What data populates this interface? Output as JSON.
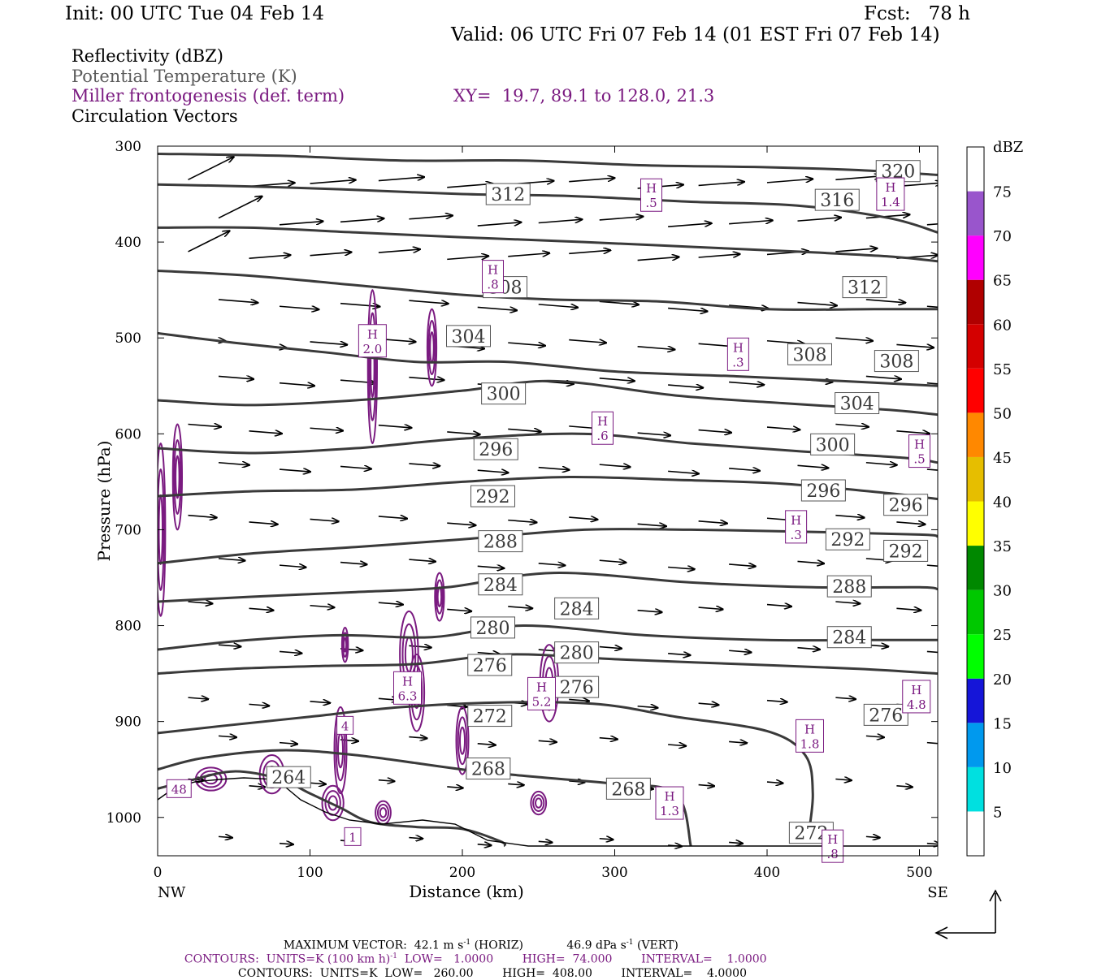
{
  "header": {
    "init": "Init: 00 UTC Tue 04 Feb 14",
    "fcst": "Fcst:   78 h",
    "valid": "Valid: 06 UTC Fri 07 Feb 14 (01 EST Fri 07 Feb 14)"
  },
  "legend": {
    "reflectivity": "Reflectivity (dBZ)",
    "theta": "Potential Temperature (K)",
    "frontogenesis": "Miller frontogenesis (def. term)",
    "xy": "XY=  19.7, 89.1 to 128.0, 21.3",
    "vectors": "Circulation Vectors"
  },
  "colors": {
    "theta": "#3a3a3a",
    "frontogenesis": "#7a1a80",
    "vector": "#000000"
  },
  "colorbar": {
    "unit": "dBZ",
    "levels": [
      "5",
      "10",
      "15",
      "20",
      "25",
      "30",
      "35",
      "40",
      "45",
      "50",
      "55",
      "60",
      "65",
      "70",
      "75"
    ],
    "colors": [
      "#ffffff",
      "#00e0e0",
      "#0099ee",
      "#1515d8",
      "#00ff00",
      "#00c800",
      "#008800",
      "#ffff00",
      "#e6be00",
      "#ff8800",
      "#ff0000",
      "#d40000",
      "#b00000",
      "#ff00ff",
      "#9955cc",
      "#ffffff"
    ]
  },
  "chart_data": {
    "type": "contour",
    "xlabel": "Distance (km)",
    "ylabel": "Pressure (hPa)",
    "x_ticks": [
      "0",
      "100",
      "200",
      "300",
      "400",
      "500"
    ],
    "y_ticks": [
      "300",
      "400",
      "500",
      "600",
      "700",
      "800",
      "900",
      "1000"
    ],
    "xlim": [
      0,
      512
    ],
    "ylim": [
      1040,
      300
    ],
    "left_end": "NW",
    "right_end": "SE",
    "theta_contours": [
      {
        "level": 264,
        "points": [
          [
            0,
            970
          ],
          [
            20,
            962
          ],
          [
            50,
            952
          ],
          [
            80,
            960
          ],
          [
            100,
            975
          ],
          [
            120,
            990
          ],
          [
            140,
            1005
          ],
          [
            170,
            1010
          ],
          [
            200,
            1012
          ],
          [
            225,
            1025
          ],
          [
            228,
            1030
          ]
        ]
      },
      {
        "level": 268,
        "points": [
          [
            0,
            950
          ],
          [
            30,
            938
          ],
          [
            80,
            930
          ],
          [
            130,
            935
          ],
          [
            200,
            950
          ],
          [
            250,
            958
          ],
          [
            300,
            965
          ],
          [
            340,
            975
          ],
          [
            350,
            1030
          ]
        ]
      },
      {
        "level": 272,
        "points": [
          [
            0,
            912
          ],
          [
            40,
            905
          ],
          [
            100,
            895
          ],
          [
            160,
            885
          ],
          [
            230,
            880
          ],
          [
            290,
            882
          ],
          [
            340,
            895
          ],
          [
            400,
            910
          ],
          [
            425,
            935
          ],
          [
            430,
            975
          ],
          [
            427,
            1020
          ]
        ]
      },
      {
        "level": 276,
        "points": [
          [
            0,
            850
          ],
          [
            50,
            845
          ],
          [
            110,
            842
          ],
          [
            170,
            840
          ],
          [
            230,
            830
          ],
          [
            300,
            835
          ],
          [
            380,
            840
          ],
          [
            460,
            845
          ],
          [
            512,
            850
          ]
        ]
      },
      {
        "level": 280,
        "points": [
          [
            0,
            825
          ],
          [
            60,
            815
          ],
          [
            120,
            810
          ],
          [
            180,
            812
          ],
          [
            240,
            800
          ],
          [
            320,
            810
          ],
          [
            400,
            815
          ],
          [
            470,
            815
          ],
          [
            512,
            815
          ]
        ]
      },
      {
        "level": 284,
        "points": [
          [
            0,
            775
          ],
          [
            60,
            770
          ],
          [
            130,
            765
          ],
          [
            190,
            760
          ],
          [
            260,
            745
          ],
          [
            350,
            755
          ],
          [
            430,
            760
          ],
          [
            500,
            760
          ],
          [
            512,
            762
          ]
        ]
      },
      {
        "level": 288,
        "points": [
          [
            0,
            735
          ],
          [
            60,
            725
          ],
          [
            130,
            718
          ],
          [
            200,
            710
          ],
          [
            280,
            700
          ],
          [
            350,
            700
          ],
          [
            420,
            702
          ],
          [
            500,
            705
          ],
          [
            512,
            707
          ]
        ]
      },
      {
        "level": 292,
        "points": [
          [
            0,
            665
          ],
          [
            60,
            660
          ],
          [
            130,
            658
          ],
          [
            200,
            650
          ],
          [
            270,
            645
          ],
          [
            340,
            648
          ],
          [
            410,
            652
          ],
          [
            480,
            662
          ],
          [
            512,
            668
          ]
        ]
      },
      {
        "level": 296,
        "points": [
          [
            0,
            615
          ],
          [
            60,
            620
          ],
          [
            130,
            615
          ],
          [
            200,
            605
          ],
          [
            280,
            600
          ],
          [
            350,
            610
          ],
          [
            420,
            618
          ],
          [
            490,
            625
          ],
          [
            512,
            630
          ]
        ]
      },
      {
        "level": 300,
        "points": [
          [
            0,
            565
          ],
          [
            60,
            570
          ],
          [
            130,
            565
          ],
          [
            200,
            555
          ],
          [
            260,
            545
          ],
          [
            340,
            560
          ],
          [
            410,
            568
          ],
          [
            480,
            575
          ],
          [
            512,
            580
          ]
        ]
      },
      {
        "level": 304,
        "points": [
          [
            0,
            495
          ],
          [
            50,
            505
          ],
          [
            110,
            515
          ],
          [
            170,
            525
          ],
          [
            230,
            525
          ],
          [
            300,
            535
          ],
          [
            380,
            540
          ],
          [
            450,
            545
          ],
          [
            512,
            550
          ]
        ]
      },
      {
        "level": 308,
        "points": [
          [
            0,
            430
          ],
          [
            60,
            435
          ],
          [
            130,
            445
          ],
          [
            200,
            455
          ],
          [
            260,
            460
          ],
          [
            330,
            462
          ],
          [
            400,
            470
          ],
          [
            470,
            470
          ],
          [
            512,
            470
          ]
        ]
      },
      {
        "level": 312,
        "points": [
          [
            0,
            385
          ],
          [
            60,
            385
          ],
          [
            130,
            390
          ],
          [
            200,
            395
          ],
          [
            280,
            400
          ],
          [
            350,
            405
          ],
          [
            420,
            410
          ],
          [
            480,
            415
          ],
          [
            512,
            420
          ]
        ]
      },
      {
        "level": 316,
        "points": [
          [
            0,
            340
          ],
          [
            60,
            342
          ],
          [
            120,
            345
          ],
          [
            200,
            350
          ],
          [
            270,
            352
          ],
          [
            350,
            358
          ],
          [
            420,
            362
          ],
          [
            480,
            375
          ],
          [
            512,
            390
          ]
        ]
      },
      {
        "level": 320,
        "points": [
          [
            0,
            308
          ],
          [
            80,
            310
          ],
          [
            160,
            315
          ],
          [
            240,
            315
          ],
          [
            320,
            320
          ],
          [
            400,
            322
          ],
          [
            460,
            325
          ],
          [
            512,
            330
          ]
        ]
      }
    ],
    "theta_labels": [
      {
        "text": "320",
        "x": 486,
        "p": 326
      },
      {
        "text": "316",
        "x": 446,
        "p": 356
      },
      {
        "text": "312",
        "x": 230,
        "p": 350
      },
      {
        "text": "312",
        "x": 464,
        "p": 447
      },
      {
        "text": "308",
        "x": 228,
        "p": 447
      },
      {
        "text": "308",
        "x": 428,
        "p": 517
      },
      {
        "text": "308",
        "x": 485,
        "p": 524
      },
      {
        "text": "304",
        "x": 204,
        "p": 498
      },
      {
        "text": "304",
        "x": 459,
        "p": 568
      },
      {
        "text": "300",
        "x": 227,
        "p": 558
      },
      {
        "text": "300",
        "x": 443,
        "p": 611
      },
      {
        "text": "296",
        "x": 222,
        "p": 616
      },
      {
        "text": "296",
        "x": 437,
        "p": 659
      },
      {
        "text": "296",
        "x": 491,
        "p": 674
      },
      {
        "text": "292",
        "x": 220,
        "p": 665
      },
      {
        "text": "292",
        "x": 453,
        "p": 710
      },
      {
        "text": "292",
        "x": 491,
        "p": 722
      },
      {
        "text": "288",
        "x": 225,
        "p": 712
      },
      {
        "text": "288",
        "x": 454,
        "p": 759
      },
      {
        "text": "284",
        "x": 225,
        "p": 757
      },
      {
        "text": "284",
        "x": 275,
        "p": 782
      },
      {
        "text": "284",
        "x": 454,
        "p": 812
      },
      {
        "text": "280",
        "x": 220,
        "p": 802
      },
      {
        "text": "280",
        "x": 275,
        "p": 828
      },
      {
        "text": "276",
        "x": 218,
        "p": 841
      },
      {
        "text": "276",
        "x": 275,
        "p": 864
      },
      {
        "text": "276",
        "x": 478,
        "p": 893
      },
      {
        "text": "272",
        "x": 218,
        "p": 894
      },
      {
        "text": "272",
        "x": 429,
        "p": 1016
      },
      {
        "text": "268",
        "x": 217,
        "p": 949
      },
      {
        "text": "268",
        "x": 309,
        "p": 970
      },
      {
        "text": "264",
        "x": 86,
        "p": 958
      }
    ],
    "highs": [
      {
        "value": ".5",
        "x": 324,
        "p": 351
      },
      {
        "value": "1.4",
        "x": 481,
        "p": 350
      },
      {
        "value": ".8",
        "x": 220,
        "p": 436
      },
      {
        "value": "2.0",
        "x": 141,
        "p": 503
      },
      {
        "value": ".3",
        "x": 381,
        "p": 517
      },
      {
        "value": ".6",
        "x": 292,
        "p": 594
      },
      {
        "value": ".5",
        "x": 500,
        "p": 618
      },
      {
        "value": ".3",
        "x": 419,
        "p": 697
      },
      {
        "value": "6.3",
        "x": 164,
        "p": 865
      },
      {
        "value": "5.2",
        "x": 252,
        "p": 871
      },
      {
        "value": "4.8",
        "x": 498,
        "p": 874
      },
      {
        "value": "1.8",
        "x": 428,
        "p": 915
      },
      {
        "value": "1.3",
        "x": 336,
        "p": 985
      },
      {
        "value": ".8",
        "x": 443,
        "p": 1030
      }
    ],
    "front_labels": [
      {
        "text": "4",
        "x": 123,
        "p": 904
      },
      {
        "text": "48",
        "x": 14,
        "p": 970
      },
      {
        "text": "1",
        "x": 128,
        "p": 1020
      }
    ],
    "frontogenesis_contours": [
      {
        "cx": 141,
        "cp": 530,
        "rx": 3,
        "rp": 80
      },
      {
        "cx": 180,
        "cp": 510,
        "rx": 3,
        "rp": 40
      },
      {
        "cx": 13,
        "cp": 645,
        "rx": 3,
        "rp": 55
      },
      {
        "cx": 2,
        "cp": 700,
        "rx": 3,
        "rp": 90
      },
      {
        "cx": 165,
        "cp": 830,
        "rx": 6,
        "rp": 45
      },
      {
        "cx": 170,
        "cp": 870,
        "rx": 5,
        "rp": 40
      },
      {
        "cx": 200,
        "cp": 920,
        "rx": 4,
        "rp": 35
      },
      {
        "cx": 257,
        "cp": 860,
        "rx": 6,
        "rp": 40
      },
      {
        "cx": 120,
        "cp": 930,
        "rx": 4,
        "rp": 45
      },
      {
        "cx": 35,
        "cp": 960,
        "rx": 10,
        "rp": 12
      },
      {
        "cx": 75,
        "cp": 955,
        "rx": 8,
        "rp": 20
      },
      {
        "cx": 115,
        "cp": 985,
        "rx": 7,
        "rp": 18
      },
      {
        "cx": 250,
        "cp": 985,
        "rx": 5,
        "rp": 12
      },
      {
        "cx": 185,
        "cp": 770,
        "rx": 3,
        "rp": 25
      },
      {
        "cx": 123,
        "cp": 820,
        "rx": 2,
        "rp": 18
      },
      {
        "cx": 148,
        "cp": 995,
        "rx": 5,
        "rp": 12
      }
    ],
    "vectors": {
      "rows": [
        335,
        375,
        410,
        460,
        500,
        540,
        590,
        630,
        685,
        730,
        775,
        820,
        875,
        915,
        960,
        1020
      ],
      "cols": [
        20,
        60,
        100,
        145,
        190,
        230,
        270,
        315,
        355,
        400,
        445,
        485
      ],
      "u_scale": 1.0
    },
    "max_vector": {
      "label": "MAXIMUM VECTOR:",
      "horiz": "42.1 m s",
      "horiz_exp": "-1",
      "horiz_suffix": " (HORIZ)",
      "vert": "46.9 dPa s",
      "vert_exp": "-1",
      "vert_suffix": " (VERT)"
    },
    "contour_info_front": {
      "label": "CONTOURS:",
      "units": "UNITS=K (100 km h)",
      "units_exp": "-1",
      "low": "LOW=   1.0000",
      "high": "HIGH=  74.000",
      "interval": "INTERVAL=    1.0000"
    },
    "contour_info_theta": {
      "label": "CONTOURS:",
      "units": "UNITS=K",
      "low": "LOW=   260.00",
      "high": "HIGH=  408.00",
      "interval": "INTERVAL=    4.0000"
    }
  }
}
